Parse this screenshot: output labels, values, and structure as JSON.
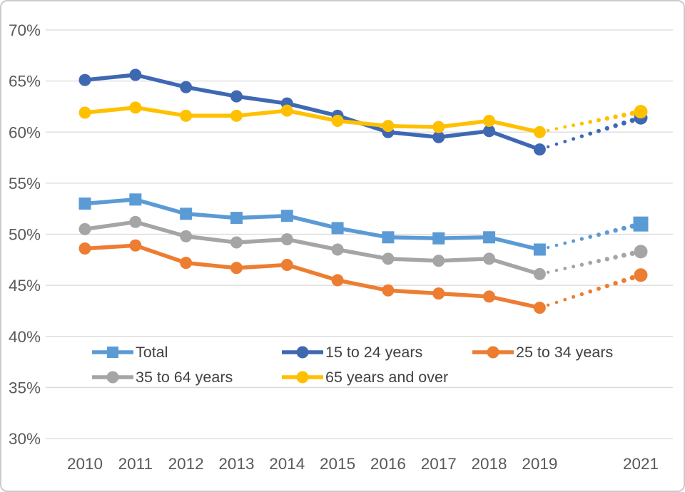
{
  "chart_data": {
    "type": "line",
    "title": "",
    "x_points": [
      {
        "year": 2010,
        "label": "2010"
      },
      {
        "year": 2011,
        "label": "2011"
      },
      {
        "year": 2012,
        "label": "2012"
      },
      {
        "year": 2013,
        "label": "2013"
      },
      {
        "year": 2014,
        "label": "2014"
      },
      {
        "year": 2015,
        "label": "2015"
      },
      {
        "year": 2016,
        "label": "2016"
      },
      {
        "year": 2017,
        "label": "2017"
      },
      {
        "year": 2018,
        "label": "2018"
      },
      {
        "year": 2019,
        "label": "2019"
      },
      {
        "year": 2021,
        "label": "2021"
      }
    ],
    "x_axis_note": "2020 position left empty; segment from 2019 to 2021 drawn as growing dotted line",
    "y_axis": {
      "min": 30,
      "max": 70,
      "step": 5,
      "unit": "%",
      "tick_labels": [
        "30%",
        "35%",
        "40%",
        "45%",
        "50%",
        "55%",
        "60%",
        "65%",
        "70%"
      ]
    },
    "grid": "horizontal",
    "legend_position": "bottom-inside",
    "series": [
      {
        "name": "Total",
        "marker": "square",
        "color": "#5B9BD5",
        "dotted_from_index": 9,
        "values": [
          53.0,
          53.4,
          52.0,
          51.6,
          51.8,
          50.6,
          49.7,
          49.6,
          49.7,
          48.5,
          51.0
        ]
      },
      {
        "name": "15 to 24 years",
        "marker": "circle",
        "color": "#3F68B3",
        "dotted_from_index": 9,
        "values": [
          65.1,
          65.6,
          64.4,
          63.5,
          62.8,
          61.6,
          60.0,
          59.5,
          60.1,
          58.3,
          61.4
        ]
      },
      {
        "name": "25 to 34 years",
        "marker": "circle",
        "color": "#ED7D31",
        "dotted_from_index": 9,
        "values": [
          48.6,
          48.9,
          47.2,
          46.7,
          47.0,
          45.5,
          44.5,
          44.2,
          43.9,
          42.8,
          46.0
        ]
      },
      {
        "name": "35 to 64 years",
        "marker": "circle",
        "color": "#A5A5A5",
        "dotted_from_index": 9,
        "values": [
          50.5,
          51.2,
          49.8,
          49.2,
          49.5,
          48.5,
          47.6,
          47.4,
          47.6,
          46.1,
          48.3
        ]
      },
      {
        "name": "65 years and over",
        "marker": "circle",
        "color": "#FFC000",
        "dotted_from_index": 9,
        "values": [
          61.9,
          62.4,
          61.6,
          61.6,
          62.1,
          61.1,
          60.6,
          60.5,
          61.1,
          60.0,
          62.0
        ]
      }
    ]
  },
  "colors": {
    "gridline": "#D9D9D9",
    "tick_text": "#595959",
    "legend_text": "#404040",
    "background": "#FFFFFF",
    "border": "#CBCBCB"
  }
}
